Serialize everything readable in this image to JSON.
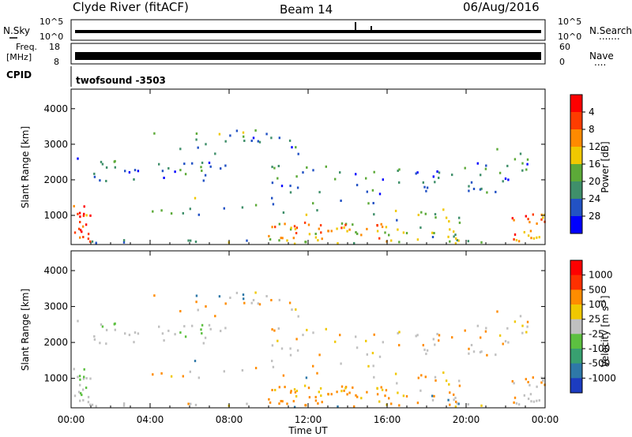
{
  "header": {
    "station": "Clyde River (fitACF)",
    "beam": "Beam 14",
    "date": "06/Aug/2016"
  },
  "noise_panel": {
    "left_label": "N.Sky",
    "right_label": "N.Search",
    "right_dots": ".......",
    "ytick_top": "10^5",
    "ytick_bottom": "10^0"
  },
  "freq_panel": {
    "left_label_1": "Freq.",
    "left_label_2": "[MHz]",
    "left_ticks": [
      "18",
      "8"
    ],
    "right_label": "Nave",
    "right_dots": "....",
    "right_ticks": [
      "60",
      "0"
    ]
  },
  "cpid_panel": {
    "label": "CPID",
    "value": "twofsound -3503"
  },
  "chart_data": [
    {
      "type": "heatmap",
      "name": "power",
      "ylabel": "Slant Range [km]",
      "xlabel": "",
      "x_ticks": [
        "00:00",
        "04:00",
        "08:00",
        "12:00",
        "16:00",
        "20:00",
        "00:00"
      ],
      "y_ticks": [
        "1000",
        "2000",
        "3000",
        "4000"
      ],
      "ylim": [
        180,
        4550
      ],
      "x_range_hours": [
        0,
        24
      ],
      "colorbar": {
        "label": "Power [dB]",
        "ticks": [
          "4",
          "8",
          "12",
          "16",
          "20",
          "24",
          "28"
        ],
        "range": [
          0,
          32
        ],
        "colors": [
          "#0000ff",
          "#2252c4",
          "#3f8f6a",
          "#5caa38",
          "#f0c800",
          "#ff8a00",
          "#ff3c00",
          "#ff0000"
        ]
      }
    },
    {
      "type": "heatmap",
      "name": "velocity",
      "ylabel": "Slant Range [km]",
      "xlabel": "Time UT",
      "x_ticks": [
        "00:00",
        "04:00",
        "08:00",
        "12:00",
        "16:00",
        "20:00",
        "00:00"
      ],
      "y_ticks": [
        "1000",
        "2000",
        "3000",
        "4000"
      ],
      "ylim": [
        180,
        4550
      ],
      "x_range_hours": [
        0,
        24
      ],
      "colorbar": {
        "label": "Velocity [m s-1]",
        "ticks": [
          "1000",
          "500",
          "100",
          "25",
          "-25",
          "-100",
          "-500",
          "-1000"
        ],
        "colors": [
          "#1c3cc0",
          "#2e78a8",
          "#38a070",
          "#5cc040",
          "#c0c0c0",
          "#f0c800",
          "#ff8c00",
          "#ff3000",
          "#ff0000"
        ]
      }
    }
  ]
}
